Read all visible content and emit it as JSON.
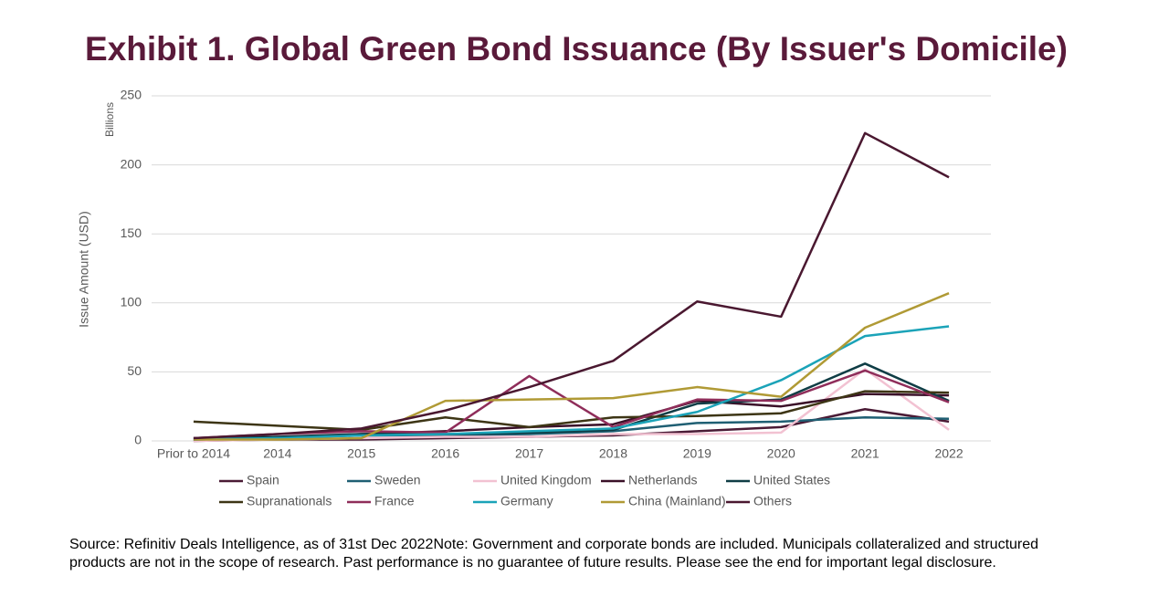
{
  "chart_data": {
    "type": "line",
    "title": "Exhibit 1. Global Green Bond Issuance (By Issuer's Domicile)",
    "y_unit": "Billions",
    "y_label": "Issue Amount (USD)",
    "categories": [
      "Prior to 2014",
      "2014",
      "2015",
      "2016",
      "2017",
      "2018",
      "2019",
      "2020",
      "2021",
      "2022"
    ],
    "ylim": [
      0,
      250
    ],
    "yticks": [
      0,
      50,
      100,
      150,
      200,
      250
    ],
    "grid": true,
    "series": [
      {
        "name": "Spain",
        "color": "#4a1a35",
        "values": [
          0,
          1,
          1,
          2,
          3,
          4,
          7,
          10,
          23,
          14
        ]
      },
      {
        "name": "Sweden",
        "color": "#1f5f73",
        "values": [
          1,
          2,
          4,
          4,
          5,
          7,
          13,
          14,
          17,
          16
        ]
      },
      {
        "name": "United Kingdom",
        "color": "#f2c2d2",
        "values": [
          0,
          1,
          2,
          3,
          3,
          5,
          5,
          6,
          52,
          8
        ]
      },
      {
        "name": "Netherlands",
        "color": "#3a1028",
        "values": [
          1,
          2,
          5,
          7,
          10,
          12,
          29,
          25,
          34,
          33
        ]
      },
      {
        "name": "United States",
        "color": "#0f3d45",
        "values": [
          2,
          3,
          5,
          5,
          6,
          8,
          27,
          30,
          56,
          29
        ]
      },
      {
        "name": "Supranationals",
        "color": "#3d3515",
        "values": [
          14,
          11,
          8,
          17,
          10,
          17,
          18,
          20,
          36,
          35
        ]
      },
      {
        "name": "France",
        "color": "#8f2d5a",
        "values": [
          2,
          5,
          7,
          6,
          47,
          10,
          30,
          29,
          51,
          28
        ]
      },
      {
        "name": "Germany",
        "color": "#1ba3b8",
        "values": [
          1,
          2,
          4,
          5,
          7,
          9,
          21,
          44,
          76,
          83
        ]
      },
      {
        "name": "China (Mainland)",
        "color": "#b09a35",
        "values": [
          1,
          1,
          2,
          29,
          30,
          31,
          39,
          32,
          82,
          107
        ]
      },
      {
        "name": "Others",
        "color": "#4a1830",
        "values": [
          2,
          5,
          9,
          22,
          39,
          58,
          101,
          90,
          223,
          191
        ]
      }
    ]
  },
  "footnote": "Source: Refinitiv Deals Intelligence, as of 31st Dec 2022Note: Government and corporate bonds are included. Municipals collateralized and structured products are not in the scope of research. Past performance is no guarantee of future results. Please see the end for important legal disclosure."
}
